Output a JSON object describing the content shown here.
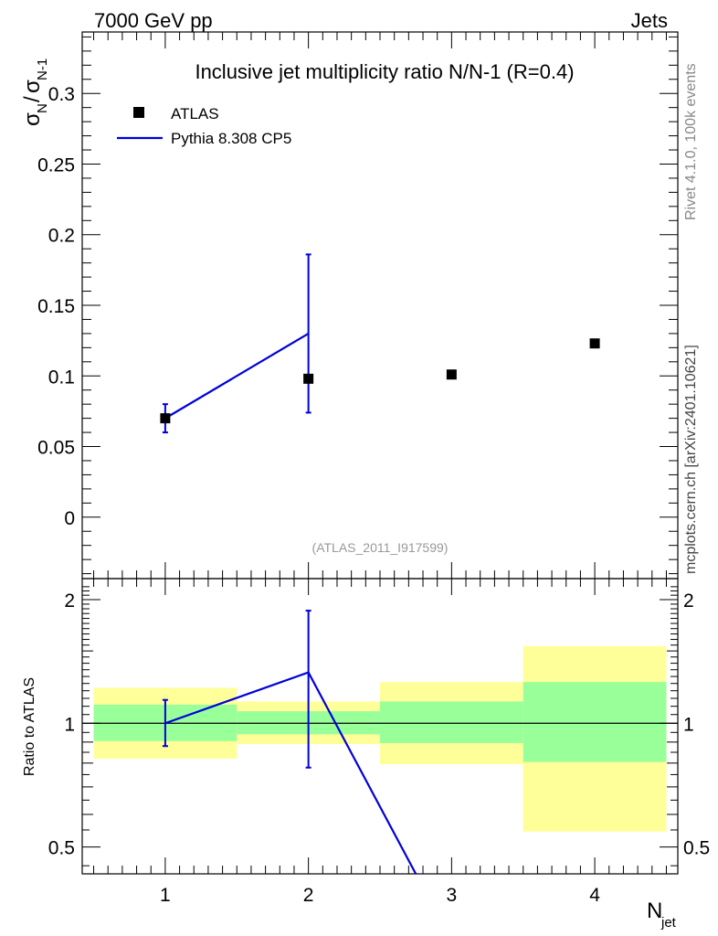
{
  "header": {
    "left": "7000 GeV pp",
    "right": "Jets",
    "side_top": "Rivet 4.1.0,  100k events",
    "side_bottom": "mcplots.cern.ch [arXiv:2401.10621]"
  },
  "colors": {
    "data_marker": "#000000",
    "mc_line": "#0000dd",
    "band_inner": "#99ff99",
    "band_outer": "#ffff99",
    "watermark": "#999999"
  },
  "chart_data": [
    {
      "type": "scatter",
      "title": "Inclusive jet multiplicity ratio N/N-1 (R=0.4)",
      "ylabel_main": "σ",
      "ylabel_sub": "N",
      "ylabel_den": "σ",
      "ylabel_den_sub": "N-1",
      "xlim": [
        0.42,
        4.58
      ],
      "ylim": [
        -0.0435,
        0.3435
      ],
      "yticks": [
        0,
        0.05,
        0.1,
        0.15,
        0.2,
        0.25,
        0.3
      ],
      "ytick_labels": [
        "0",
        "0.05",
        "0.1",
        "0.15",
        "0.2",
        "0.25",
        "0.3"
      ],
      "watermark": "(ATLAS_2011_I917599)",
      "legend": [
        "ATLAS",
        "Pythia 8.308 CP5"
      ],
      "series": [
        {
          "name": "ATLAS",
          "kind": "points",
          "x": [
            1,
            2,
            3,
            4
          ],
          "y": [
            0.07,
            0.098,
            0.101,
            0.123
          ]
        },
        {
          "name": "Pythia 8.308 CP5",
          "kind": "line",
          "x": [
            1,
            2
          ],
          "y": [
            0.07,
            0.13
          ],
          "err_low": [
            0.06,
            0.074
          ],
          "err_high": [
            0.08,
            0.186
          ]
        }
      ]
    },
    {
      "type": "line",
      "ylabel": "Ratio to ATLAS",
      "xlabel": "N",
      "xlabel_sub": "jet",
      "xlim": [
        0.42,
        4.58
      ],
      "ylim": [
        0.43,
        2.25
      ],
      "yscale": "log",
      "xticks": [
        1,
        2,
        3,
        4
      ],
      "xtick_labels": [
        "1",
        "2",
        "3",
        "4"
      ],
      "yticks": [
        0.5,
        1,
        2
      ],
      "ytick_labels": [
        "0.5",
        "1",
        "2"
      ],
      "bands": [
        {
          "x": [
            0.5,
            1.5
          ],
          "inner": [
            0.905,
            1.11
          ],
          "outer": [
            0.82,
            1.22
          ]
        },
        {
          "x": [
            1.5,
            2.5
          ],
          "inner": [
            0.94,
            1.07
          ],
          "outer": [
            0.89,
            1.13
          ]
        },
        {
          "x": [
            2.5,
            3.5
          ],
          "inner": [
            0.895,
            1.13
          ],
          "outer": [
            0.795,
            1.26
          ]
        },
        {
          "x": [
            3.5,
            4.5
          ],
          "inner": [
            0.805,
            1.26
          ],
          "outer": [
            0.545,
            1.54
          ]
        }
      ],
      "series": [
        {
          "name": "Pythia 8.308 CP5 / ATLAS",
          "x": [
            1,
            2,
            2.75
          ],
          "y": [
            1.0,
            1.33,
            0.43
          ],
          "err_x": [
            1,
            2
          ],
          "err_low": [
            0.88,
            0.78
          ],
          "err_high": [
            1.14,
            1.88
          ]
        }
      ]
    }
  ]
}
